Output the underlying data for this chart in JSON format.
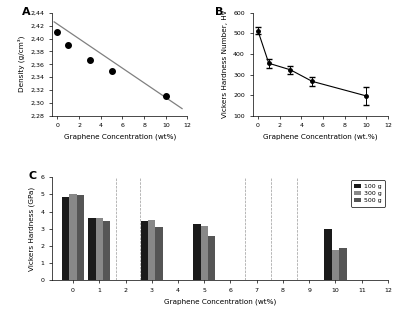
{
  "panel_A": {
    "x": [
      0,
      1,
      3,
      5,
      10
    ],
    "y": [
      2.41,
      2.39,
      2.367,
      2.35,
      2.31
    ],
    "fit_x": [
      -0.3,
      11.5
    ],
    "fit_y": [
      2.426,
      2.291
    ],
    "xlabel": "Graphene Concentration (wt%)",
    "ylabel": "Density (g/cm³)",
    "xlim": [
      -0.5,
      12
    ],
    "ylim": [
      2.28,
      2.44
    ],
    "yticks": [
      2.28,
      2.3,
      2.32,
      2.34,
      2.36,
      2.38,
      2.4,
      2.42,
      2.44
    ],
    "yticklabels": [
      "2,28",
      "2,30",
      "2,32",
      "2,34",
      "2,36",
      "2,38",
      "2,40",
      "2,42",
      "2,44"
    ],
    "xticks": [
      0,
      2,
      4,
      6,
      8,
      10,
      12
    ],
    "label": "A"
  },
  "panel_B": {
    "x": [
      0,
      1,
      3,
      5,
      10
    ],
    "y": [
      513,
      355,
      323,
      267,
      196
    ],
    "yerr": [
      18,
      22,
      18,
      22,
      45
    ],
    "xlabel": "Graphene Concentration (wt.%)",
    "ylabel": "Vickers Hardness Number, Hv",
    "xlim": [
      -0.5,
      12
    ],
    "ylim": [
      100,
      600
    ],
    "yticks": [
      100,
      200,
      300,
      400,
      500,
      600
    ],
    "xticks": [
      0,
      2,
      4,
      6,
      8,
      10,
      12
    ],
    "label": "B"
  },
  "panel_C": {
    "x_centers": [
      0,
      1,
      3,
      5,
      10
    ],
    "y_100g": [
      4.85,
      3.6,
      3.45,
      3.25,
      2.98
    ],
    "y_300g": [
      5.05,
      3.6,
      3.5,
      3.15,
      1.78
    ],
    "y_500g": [
      4.98,
      3.45,
      3.1,
      2.6,
      1.85
    ],
    "bar_width": 0.28,
    "xlabel": "Graphene Concentration (wt%)",
    "ylabel": "Vickers Hardness (GPa)",
    "xlim": [
      -0.8,
      12
    ],
    "ylim": [
      0,
      6
    ],
    "xticks": [
      0,
      1,
      2,
      3,
      4,
      5,
      6,
      7,
      8,
      9,
      10,
      11,
      12
    ],
    "yticks": [
      0,
      1,
      2,
      3,
      4,
      5,
      6
    ],
    "label": "C",
    "legend_labels": [
      "100 g",
      "300 g",
      "500 g"
    ],
    "color_100g": "#1a1a1a",
    "color_300g": "#888888",
    "color_500g": "#555555",
    "dashed_lines": [
      1.65,
      2.55,
      6.55,
      7.55,
      8.55
    ]
  },
  "figure_bg": "#ffffff"
}
